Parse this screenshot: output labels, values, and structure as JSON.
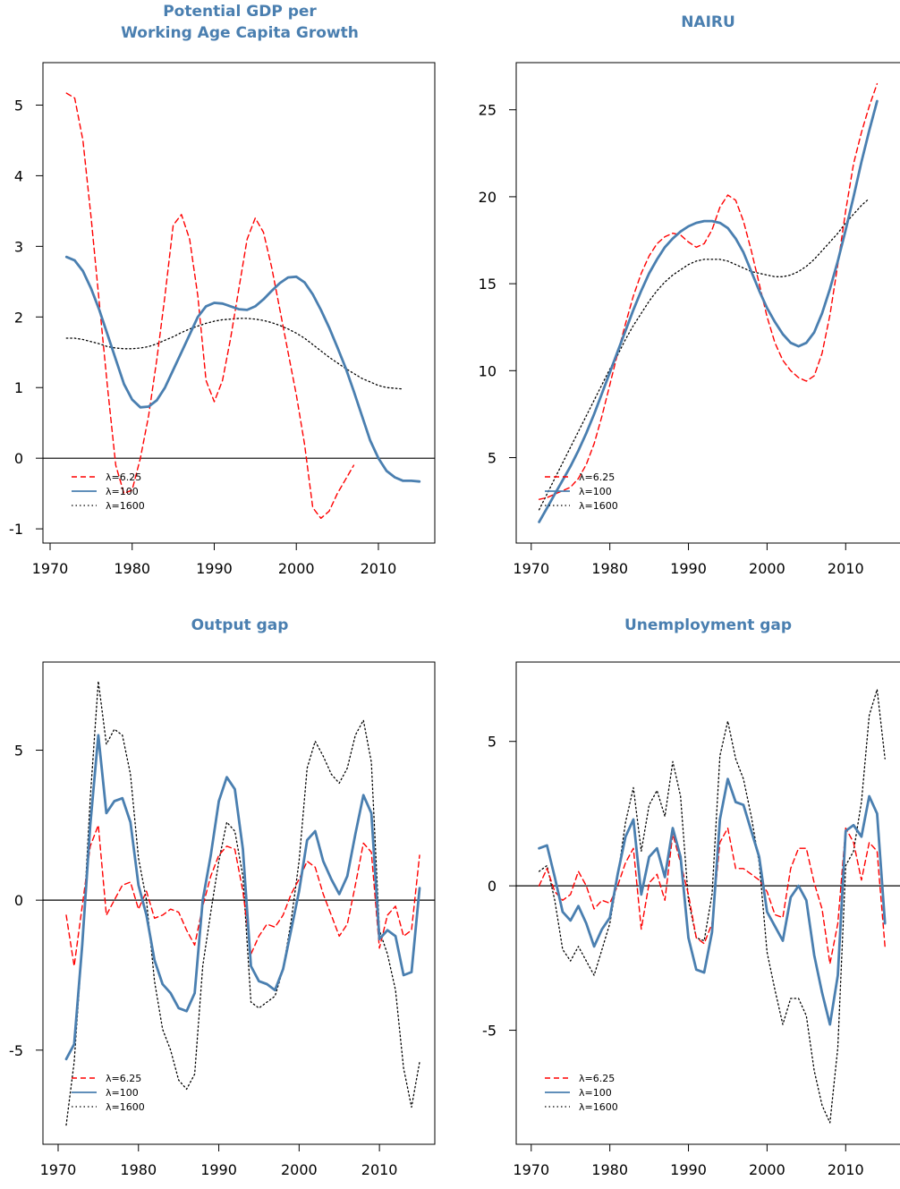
{
  "colors": {
    "red": "#ff0000",
    "blue": "#4a7fb0",
    "black": "#000000",
    "title": "#4a7fb0"
  },
  "legend_labels": [
    "λ=6.25",
    "λ=100",
    "λ=1600"
  ],
  "chart_data": [
    {
      "type": "line",
      "title_lines": [
        "Potential GDP  per",
        "Working Age Capita Growth"
      ],
      "xlim": [
        1970,
        2016
      ],
      "ylim": [
        -1.1,
        5.5
      ],
      "xticks": [
        1970,
        1980,
        1990,
        2000,
        2010
      ],
      "yticks": [
        -1,
        0,
        1,
        2,
        3,
        4,
        5
      ],
      "hline": 0,
      "legend": "bottom-left",
      "series": [
        {
          "name": "λ=6.25",
          "style": "dashed",
          "x_start": 1972,
          "values": [
            5.17,
            5.1,
            4.5,
            3.4,
            2.2,
            1.0,
            -0.1,
            -0.5,
            -0.45,
            0.0,
            0.6,
            1.4,
            2.3,
            3.3,
            3.45,
            3.1,
            2.3,
            1.1,
            0.8,
            1.1,
            1.7,
            2.4,
            3.1,
            3.4,
            3.2,
            2.7,
            2.1,
            1.5,
            0.9,
            0.2,
            -0.7,
            -0.85,
            -0.75,
            -0.5,
            -0.3,
            -0.1
          ]
        },
        {
          "name": "λ=100",
          "style": "solid",
          "x_start": 1972,
          "values": [
            2.85,
            2.8,
            2.65,
            2.4,
            2.1,
            1.75,
            1.4,
            1.05,
            0.83,
            0.72,
            0.73,
            0.82,
            1.0,
            1.25,
            1.5,
            1.75,
            2.0,
            2.15,
            2.2,
            2.19,
            2.15,
            2.11,
            2.1,
            2.15,
            2.25,
            2.37,
            2.48,
            2.56,
            2.57,
            2.49,
            2.32,
            2.1,
            1.85,
            1.57,
            1.28,
            0.95,
            0.6,
            0.25,
            0.0,
            -0.18,
            -0.27,
            -0.32,
            -0.32,
            -0.33
          ]
        },
        {
          "name": "λ=1600",
          "style": "dotted",
          "x_start": 1972,
          "values": [
            1.7,
            1.7,
            1.68,
            1.65,
            1.62,
            1.58,
            1.56,
            1.55,
            1.55,
            1.56,
            1.58,
            1.62,
            1.67,
            1.72,
            1.78,
            1.83,
            1.87,
            1.91,
            1.94,
            1.96,
            1.97,
            1.98,
            1.98,
            1.97,
            1.95,
            1.92,
            1.88,
            1.83,
            1.77,
            1.7,
            1.61,
            1.52,
            1.43,
            1.35,
            1.27,
            1.2,
            1.13,
            1.08,
            1.03,
            1.0,
            0.99,
            0.98
          ]
        }
      ]
    },
    {
      "type": "line",
      "title_lines": [
        "NAIRU"
      ],
      "xlim": [
        1969,
        2016
      ],
      "ylim": [
        0.5,
        27.3
      ],
      "xticks": [
        1970,
        1980,
        1990,
        2000,
        2010
      ],
      "yticks": [
        5,
        10,
        15,
        20,
        25
      ],
      "legend": "bottom-left",
      "series": [
        {
          "name": "λ=6.25",
          "style": "dashed",
          "x_start": 1971,
          "values": [
            2.6,
            2.7,
            2.9,
            3.1,
            3.3,
            3.8,
            4.6,
            5.8,
            7.4,
            9.2,
            11.0,
            12.7,
            14.3,
            15.6,
            16.6,
            17.3,
            17.7,
            17.9,
            17.8,
            17.4,
            17.1,
            17.3,
            18.1,
            19.4,
            20.1,
            19.8,
            18.6,
            16.9,
            15.0,
            13.1,
            11.6,
            10.6,
            10.0,
            9.6,
            9.4,
            9.7,
            11.0,
            13.2,
            16.1,
            19.2,
            21.9,
            23.7,
            25.2,
            26.5
          ]
        },
        {
          "name": "λ=100",
          "style": "solid",
          "x_start": 1971,
          "values": [
            1.3,
            2.1,
            2.9,
            3.7,
            4.5,
            5.4,
            6.4,
            7.5,
            8.7,
            9.9,
            11.1,
            12.3,
            13.5,
            14.6,
            15.6,
            16.4,
            17.1,
            17.6,
            18.0,
            18.3,
            18.5,
            18.6,
            18.6,
            18.5,
            18.2,
            17.6,
            16.8,
            15.7,
            14.6,
            13.6,
            12.8,
            12.1,
            11.6,
            11.4,
            11.6,
            12.2,
            13.3,
            14.7,
            16.3,
            18.1,
            20.0,
            22.0,
            23.8,
            25.5
          ]
        },
        {
          "name": "λ=1600",
          "style": "dotted",
          "x_start": 1971,
          "values": [
            2.0,
            2.9,
            3.8,
            4.7,
            5.6,
            6.5,
            7.4,
            8.3,
            9.2,
            10.1,
            10.9,
            11.8,
            12.6,
            13.3,
            14.0,
            14.6,
            15.1,
            15.5,
            15.8,
            16.1,
            16.3,
            16.4,
            16.4,
            16.4,
            16.3,
            16.1,
            15.9,
            15.7,
            15.6,
            15.5,
            15.4,
            15.4,
            15.5,
            15.7,
            16.0,
            16.4,
            16.9,
            17.4,
            17.9,
            18.5,
            19.0,
            19.5,
            19.9
          ]
        }
      ]
    },
    {
      "type": "line",
      "title_lines": [
        "Output gap"
      ],
      "xlim": [
        1969,
        2016
      ],
      "ylim": [
        -7.9,
        7.7
      ],
      "xticks": [
        1970,
        1980,
        1990,
        2000,
        2010
      ],
      "yticks": [
        -5,
        0,
        5
      ],
      "hline": 0,
      "legend": "bottom-left",
      "series": [
        {
          "name": "λ=6.25",
          "style": "dashed",
          "x_start": 1971,
          "values": [
            -0.5,
            -2.2,
            -0.2,
            1.8,
            2.5,
            -0.5,
            0.0,
            0.5,
            0.6,
            -0.3,
            0.3,
            -0.6,
            -0.5,
            -0.3,
            -0.4,
            -1.0,
            -1.5,
            -0.2,
            0.8,
            1.5,
            1.8,
            1.7,
            0.3,
            -1.8,
            -1.2,
            -0.8,
            -0.9,
            -0.5,
            0.2,
            0.7,
            1.3,
            1.1,
            0.2,
            -0.5,
            -1.2,
            -0.8,
            0.5,
            1.9,
            1.6,
            -1.6,
            -0.5,
            -0.2,
            -1.2,
            -1.0,
            1.5
          ]
        },
        {
          "name": "λ=100",
          "style": "solid",
          "x_start": 1971,
          "values": [
            -5.3,
            -4.8,
            -1.5,
            2.5,
            5.5,
            2.9,
            3.3,
            3.4,
            2.6,
            0.5,
            -0.5,
            -2.0,
            -2.8,
            -3.1,
            -3.6,
            -3.7,
            -3.1,
            0.0,
            1.5,
            3.3,
            4.1,
            3.7,
            1.7,
            -2.2,
            -2.7,
            -2.8,
            -3.0,
            -2.3,
            -1.0,
            0.3,
            2.0,
            2.3,
            1.3,
            0.7,
            0.2,
            0.8,
            2.2,
            3.5,
            2.9,
            -1.3,
            -1.0,
            -1.2,
            -2.5,
            -2.4,
            0.4
          ]
        },
        {
          "name": "λ=1600",
          "style": "dotted",
          "x_start": 1971,
          "values": [
            -7.5,
            -5.4,
            -1.5,
            3.4,
            7.3,
            5.2,
            5.7,
            5.5,
            4.2,
            1.4,
            0.0,
            -2.7,
            -4.3,
            -5.0,
            -6.0,
            -6.3,
            -5.8,
            -2.2,
            -0.4,
            1.3,
            2.6,
            2.3,
            0.8,
            -3.4,
            -3.6,
            -3.4,
            -3.2,
            -2.3,
            -0.7,
            1.3,
            4.4,
            5.3,
            4.8,
            4.2,
            3.9,
            4.4,
            5.5,
            6.0,
            4.6,
            -1.0,
            -1.8,
            -3.0,
            -5.6,
            -6.9,
            -5.4
          ]
        }
      ]
    },
    {
      "type": "line",
      "title_lines": [
        "Unemployment gap"
      ],
      "xlim": [
        1969,
        2016
      ],
      "ylim": [
        -8.7,
        7.5
      ],
      "xticks": [
        1970,
        1980,
        1990,
        2000,
        2010
      ],
      "yticks": [
        -5,
        0,
        5
      ],
      "hline": 0,
      "legend": "bottom-left",
      "series": [
        {
          "name": "λ=6.25",
          "style": "dashed",
          "x_start": 1971,
          "values": [
            0.0,
            0.6,
            -0.2,
            -0.5,
            -0.3,
            0.5,
            0.0,
            -0.8,
            -0.5,
            -0.6,
            0.0,
            0.8,
            1.3,
            -1.5,
            0.1,
            0.4,
            -0.5,
            1.8,
            0.8,
            -0.3,
            -1.8,
            -2.0,
            -1.3,
            1.5,
            2.0,
            0.6,
            0.6,
            0.4,
            0.2,
            -0.2,
            -1.0,
            -1.1,
            0.6,
            1.3,
            1.3,
            0.1,
            -0.8,
            -2.7,
            -1.3,
            2.0,
            1.5,
            0.2,
            1.5,
            1.2,
            -2.1
          ]
        },
        {
          "name": "λ=100",
          "style": "solid",
          "x_start": 1971,
          "values": [
            1.3,
            1.4,
            0.3,
            -0.9,
            -1.2,
            -0.7,
            -1.3,
            -2.1,
            -1.5,
            -1.1,
            0.4,
            1.7,
            2.3,
            -0.3,
            1.0,
            1.3,
            0.3,
            2.0,
            1.0,
            -1.8,
            -2.9,
            -3.0,
            -1.6,
            2.3,
            3.7,
            2.9,
            2.8,
            1.9,
            1.0,
            -0.9,
            -1.4,
            -1.9,
            -0.4,
            0.0,
            -0.5,
            -2.4,
            -3.7,
            -4.8,
            -3.1,
            1.9,
            2.1,
            1.7,
            3.1,
            2.5,
            -1.3
          ]
        },
        {
          "name": "λ=1600",
          "style": "dotted",
          "x_start": 1971,
          "values": [
            0.5,
            0.7,
            -0.5,
            -2.2,
            -2.6,
            -2.1,
            -2.6,
            -3.1,
            -2.2,
            -1.3,
            0.3,
            2.2,
            3.4,
            1.2,
            2.8,
            3.3,
            2.4,
            4.3,
            3.1,
            -0.5,
            -1.8,
            -1.9,
            -0.3,
            4.5,
            5.7,
            4.4,
            3.7,
            2.4,
            0.8,
            -2.3,
            -3.6,
            -4.8,
            -3.9,
            -3.9,
            -4.5,
            -6.4,
            -7.6,
            -8.2,
            -5.6,
            0.7,
            1.2,
            2.9,
            5.9,
            6.8,
            4.4
          ]
        }
      ]
    }
  ]
}
